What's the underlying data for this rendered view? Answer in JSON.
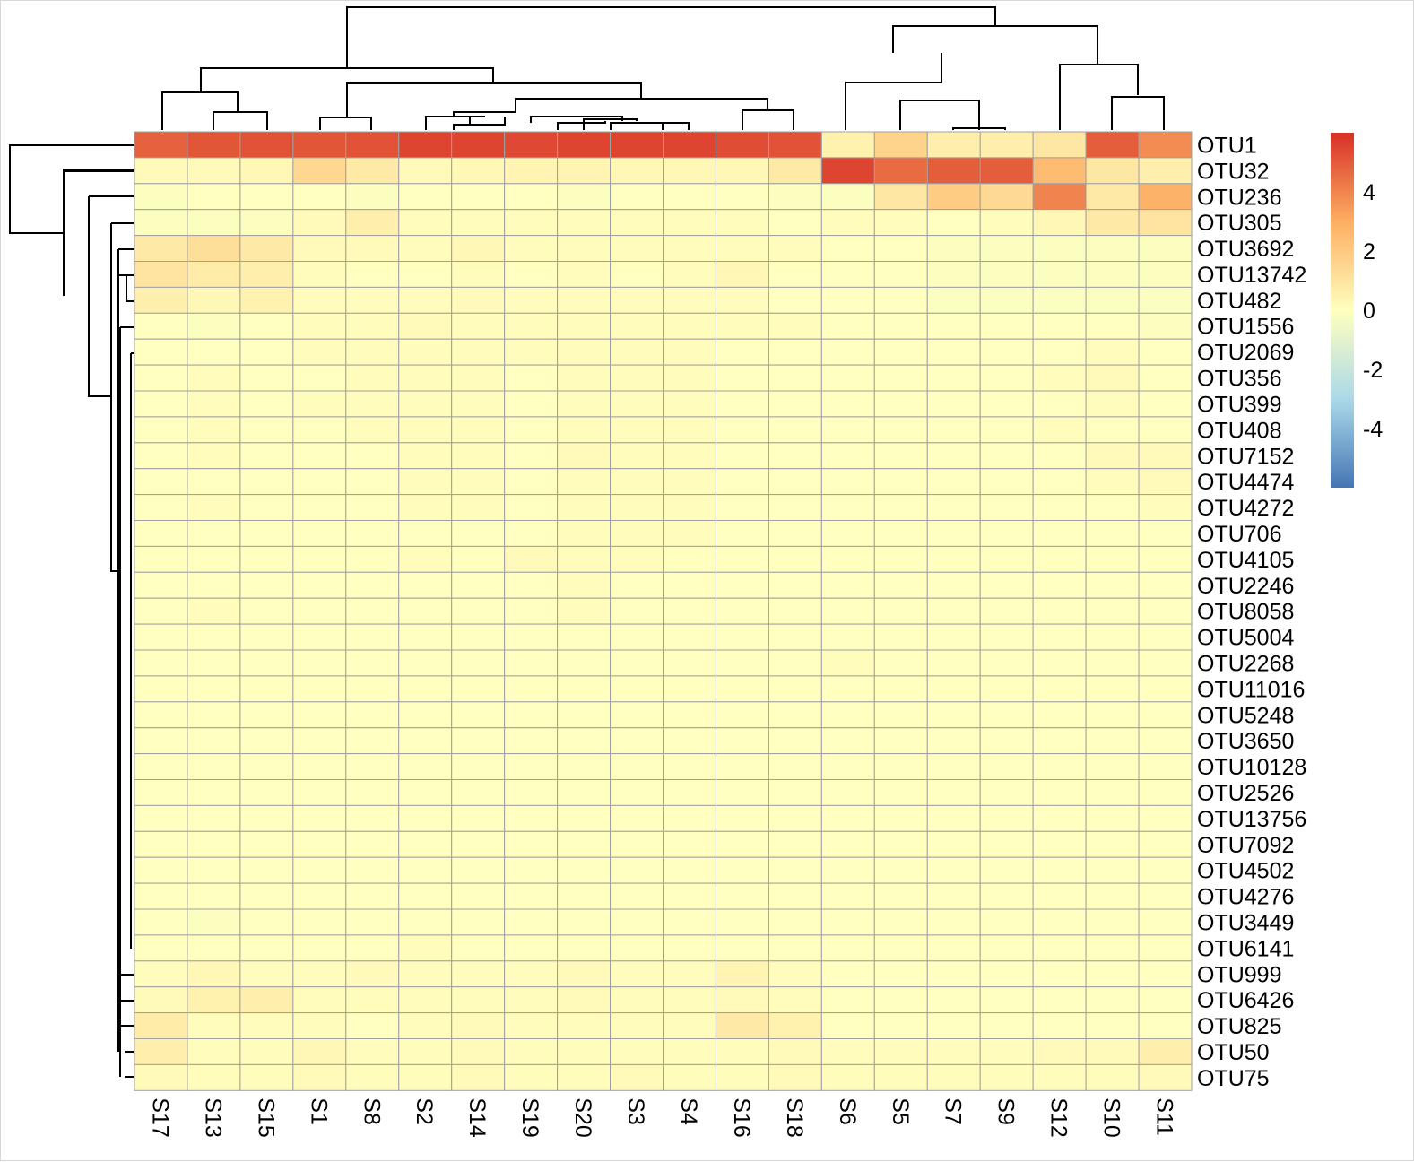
{
  "chart_data": {
    "type": "heatmap",
    "title": "",
    "colors": {
      "low": "#4575b4",
      "mid": "#ffffbf",
      "high": "#d73027",
      "cell_border": "#a0a0a0"
    },
    "columns": [
      "S17",
      "S13",
      "S15",
      "S1",
      "S8",
      "S2",
      "S14",
      "S19",
      "S20",
      "S3",
      "S4",
      "S16",
      "S18",
      "S6",
      "S5",
      "S7",
      "S9",
      "S12",
      "S10",
      "S11"
    ],
    "rows": [
      "OTU1",
      "OTU32",
      "OTU236",
      "OTU305",
      "OTU3692",
      "OTU13742",
      "OTU482",
      "OTU1556",
      "OTU2069",
      "OTU356",
      "OTU399",
      "OTU408",
      "OTU7152",
      "OTU4474",
      "OTU4272",
      "OTU706",
      "OTU4105",
      "OTU2246",
      "OTU8058",
      "OTU5004",
      "OTU2268",
      "OTU11016",
      "OTU5248",
      "OTU3650",
      "OTU10128",
      "OTU2526",
      "OTU13756",
      "OTU7092",
      "OTU4502",
      "OTU4276",
      "OTU3449",
      "OTU6141",
      "OTU999",
      "OTU6426",
      "OTU825",
      "OTU50",
      "OTU75"
    ],
    "values": [
      [
        4.8,
        5.1,
        5.2,
        5.1,
        5.2,
        5.5,
        5.5,
        5.4,
        5.5,
        5.5,
        5.5,
        5.3,
        5.2,
        0.5,
        1.6,
        0.6,
        0.6,
        0.9,
        4.9,
        3.8
      ],
      [
        0.2,
        0.2,
        0.3,
        1.5,
        0.8,
        0.2,
        0.3,
        0.4,
        0.4,
        0.3,
        0.3,
        0.3,
        0.8,
        5.5,
        4.6,
        4.9,
        4.9,
        2.5,
        0.9,
        0.6
      ],
      [
        -0.1,
        0.0,
        0.0,
        0.0,
        -0.1,
        0.0,
        0.0,
        0.0,
        -0.1,
        0.0,
        0.0,
        0.0,
        -0.1,
        -0.1,
        0.9,
        1.9,
        1.4,
        4.0,
        0.8,
        2.8
      ],
      [
        -0.1,
        -0.1,
        -0.1,
        0.2,
        0.6,
        0.1,
        0.1,
        0.1,
        0.1,
        0.1,
        0.1,
        0.1,
        0.0,
        0.1,
        0.1,
        0.0,
        0.1,
        0.3,
        0.8,
        1.0
      ],
      [
        0.8,
        1.2,
        0.8,
        0.2,
        0.2,
        0.1,
        0.3,
        0.1,
        0.1,
        0.1,
        0.1,
        0.1,
        0.1,
        0.0,
        0.0,
        -0.1,
        -0.1,
        -0.1,
        -0.1,
        -0.1
      ],
      [
        1.0,
        0.7,
        0.6,
        0.1,
        0.0,
        0.0,
        0.1,
        0.0,
        0.1,
        0.0,
        0.1,
        0.3,
        0.0,
        0.0,
        0.0,
        -0.1,
        -0.1,
        -0.1,
        -0.1,
        -0.1
      ],
      [
        0.6,
        0.3,
        0.5,
        0.1,
        0.1,
        0.1,
        0.2,
        0.1,
        0.1,
        0.1,
        0.1,
        0.1,
        0.0,
        0.0,
        0.0,
        -0.1,
        -0.1,
        -0.1,
        -0.1,
        -0.1
      ],
      [
        0.0,
        -0.1,
        0.0,
        0.1,
        0.1,
        0.2,
        0.1,
        0.1,
        0.1,
        0.1,
        0.1,
        0.1,
        0.1,
        0.0,
        0.0,
        0.0,
        0.0,
        0.0,
        0.0,
        -0.1
      ],
      [
        0.0,
        0.0,
        0.0,
        0.1,
        0.1,
        0.1,
        0.1,
        0.1,
        0.1,
        0.1,
        0.1,
        0.0,
        0.0,
        0.0,
        0.0,
        0.0,
        0.0,
        0.0,
        0.1,
        0.0
      ],
      [
        0.0,
        0.1,
        0.0,
        0.0,
        0.1,
        0.1,
        0.1,
        0.0,
        0.1,
        0.1,
        0.1,
        0.0,
        0.0,
        0.0,
        0.0,
        0.0,
        0.0,
        0.1,
        0.2,
        0.0
      ],
      [
        0.0,
        0.1,
        0.0,
        0.1,
        0.1,
        0.1,
        0.1,
        0.0,
        0.1,
        0.1,
        0.1,
        0.0,
        0.0,
        0.0,
        0.0,
        0.0,
        0.0,
        0.0,
        0.1,
        0.0
      ],
      [
        0.0,
        0.1,
        0.0,
        0.0,
        0.1,
        0.1,
        0.1,
        0.0,
        0.1,
        0.1,
        0.1,
        0.0,
        0.0,
        0.0,
        0.0,
        0.0,
        0.0,
        0.1,
        0.0,
        0.0
      ],
      [
        0.0,
        0.1,
        0.0,
        0.0,
        0.0,
        0.1,
        0.1,
        0.0,
        0.2,
        0.1,
        0.1,
        0.0,
        0.0,
        0.0,
        0.0,
        0.0,
        0.0,
        0.0,
        0.2,
        0.2
      ],
      [
        0.0,
        0.0,
        0.0,
        0.0,
        0.0,
        0.1,
        0.1,
        0.0,
        0.1,
        0.1,
        0.1,
        0.0,
        0.0,
        0.0,
        0.0,
        0.0,
        0.0,
        0.0,
        0.1,
        0.2
      ],
      [
        0.0,
        0.1,
        0.0,
        0.0,
        0.0,
        0.1,
        0.1,
        0.0,
        0.1,
        0.1,
        0.1,
        0.0,
        0.0,
        0.0,
        0.0,
        0.0,
        0.0,
        0.0,
        0.0,
        0.1
      ],
      [
        0.0,
        0.0,
        0.0,
        0.0,
        0.0,
        0.0,
        0.0,
        0.0,
        0.1,
        0.1,
        0.1,
        0.0,
        0.0,
        0.0,
        0.0,
        0.0,
        0.0,
        0.0,
        0.0,
        0.0
      ],
      [
        0.0,
        0.0,
        0.0,
        0.0,
        0.0,
        0.1,
        0.0,
        0.2,
        0.1,
        0.1,
        0.0,
        0.0,
        0.0,
        0.0,
        0.0,
        0.0,
        0.0,
        0.0,
        0.0,
        0.0
      ],
      [
        0.0,
        0.0,
        0.0,
        0.0,
        0.0,
        0.0,
        0.0,
        0.0,
        0.1,
        0.0,
        0.0,
        0.0,
        0.0,
        0.0,
        0.0,
        0.0,
        0.0,
        0.0,
        0.0,
        0.0
      ],
      [
        0.0,
        0.1,
        0.0,
        0.0,
        0.0,
        0.0,
        0.0,
        0.0,
        0.1,
        0.0,
        0.0,
        0.0,
        0.0,
        0.0,
        0.0,
        0.0,
        0.0,
        0.0,
        0.0,
        0.0
      ],
      [
        0.0,
        0.0,
        0.0,
        0.0,
        0.0,
        0.0,
        0.0,
        0.0,
        0.0,
        0.0,
        0.0,
        0.0,
        0.0,
        0.0,
        0.0,
        0.0,
        0.0,
        0.0,
        0.0,
        0.0
      ],
      [
        0.0,
        0.0,
        0.0,
        0.0,
        0.0,
        0.0,
        0.0,
        0.0,
        0.0,
        0.0,
        0.0,
        0.0,
        0.0,
        0.1,
        0.0,
        0.0,
        0.0,
        0.0,
        0.0,
        0.0
      ],
      [
        0.0,
        0.0,
        0.0,
        0.0,
        0.0,
        0.0,
        0.0,
        0.0,
        0.0,
        0.0,
        0.0,
        0.0,
        0.0,
        0.0,
        0.0,
        0.0,
        0.0,
        0.0,
        0.0,
        0.0
      ],
      [
        0.0,
        0.0,
        0.0,
        0.0,
        0.0,
        0.0,
        0.0,
        0.0,
        0.0,
        0.0,
        0.0,
        0.0,
        0.0,
        0.0,
        0.0,
        0.0,
        0.0,
        0.0,
        0.0,
        0.0
      ],
      [
        0.0,
        0.0,
        0.0,
        0.0,
        0.0,
        0.0,
        0.0,
        0.0,
        0.0,
        0.0,
        0.0,
        0.0,
        0.0,
        0.0,
        0.0,
        0.0,
        0.0,
        0.0,
        0.0,
        0.0
      ],
      [
        0.0,
        0.0,
        0.0,
        0.0,
        0.0,
        0.0,
        0.0,
        0.0,
        0.0,
        0.0,
        0.0,
        0.0,
        0.0,
        0.0,
        0.0,
        0.0,
        0.0,
        0.0,
        0.0,
        0.0
      ],
      [
        0.0,
        0.0,
        0.0,
        0.0,
        0.0,
        0.0,
        0.0,
        0.0,
        0.0,
        0.0,
        0.0,
        0.0,
        0.0,
        0.0,
        0.0,
        0.0,
        0.0,
        0.0,
        0.0,
        0.0
      ],
      [
        0.0,
        0.0,
        0.0,
        0.0,
        0.0,
        0.0,
        0.0,
        0.0,
        0.0,
        0.0,
        0.0,
        0.0,
        0.0,
        0.0,
        0.0,
        0.0,
        0.0,
        0.0,
        0.0,
        0.0
      ],
      [
        0.0,
        0.0,
        0.0,
        0.0,
        0.0,
        0.0,
        0.0,
        0.0,
        0.0,
        0.0,
        0.0,
        0.0,
        0.0,
        0.0,
        0.0,
        0.0,
        0.0,
        0.0,
        0.0,
        0.0
      ],
      [
        0.0,
        0.0,
        0.0,
        0.0,
        0.0,
        0.0,
        0.0,
        0.0,
        0.0,
        0.0,
        0.0,
        0.0,
        0.0,
        0.0,
        0.0,
        0.0,
        0.0,
        0.0,
        0.0,
        0.0
      ],
      [
        0.0,
        0.0,
        0.0,
        0.0,
        0.0,
        0.0,
        0.0,
        0.0,
        0.0,
        0.0,
        0.0,
        0.0,
        0.0,
        0.0,
        0.0,
        0.0,
        0.0,
        0.0,
        0.0,
        0.0
      ],
      [
        0.0,
        -0.1,
        0.0,
        0.0,
        0.0,
        0.0,
        0.0,
        0.0,
        0.0,
        0.0,
        0.0,
        0.0,
        0.0,
        0.0,
        0.0,
        0.0,
        0.0,
        0.0,
        0.0,
        0.0
      ],
      [
        0.0,
        0.0,
        0.0,
        0.0,
        0.0,
        0.1,
        0.0,
        0.0,
        0.0,
        0.0,
        0.0,
        0.0,
        0.0,
        0.0,
        0.0,
        0.0,
        0.0,
        0.0,
        0.0,
        0.0
      ],
      [
        0.1,
        0.3,
        0.1,
        0.1,
        0.2,
        0.1,
        0.1,
        0.1,
        0.2,
        0.1,
        0.1,
        0.4,
        0.1,
        0.0,
        0.0,
        0.0,
        0.0,
        0.0,
        0.0,
        0.0
      ],
      [
        0.2,
        0.5,
        0.6,
        0.1,
        0.1,
        0.1,
        0.1,
        0.1,
        0.2,
        0.1,
        0.1,
        0.2,
        0.1,
        0.0,
        0.0,
        0.0,
        0.0,
        0.0,
        0.0,
        0.0
      ],
      [
        0.7,
        0.1,
        0.1,
        0.1,
        0.0,
        0.1,
        0.2,
        0.1,
        0.1,
        0.1,
        0.1,
        0.8,
        0.5,
        0.0,
        0.0,
        0.0,
        0.0,
        0.0,
        0.0,
        0.0
      ],
      [
        0.6,
        0.1,
        0.1,
        0.3,
        0.1,
        0.1,
        0.2,
        0.1,
        0.1,
        0.1,
        0.1,
        0.1,
        0.2,
        0.1,
        0.1,
        0.1,
        0.1,
        0.2,
        0.2,
        0.6
      ],
      [
        0.2,
        0.1,
        0.1,
        0.2,
        0.1,
        0.1,
        0.2,
        0.1,
        0.1,
        0.2,
        0.1,
        0.1,
        0.2,
        0.1,
        0.1,
        0.1,
        0.1,
        0.1,
        0.1,
        0.2
      ]
    ],
    "colorbar": {
      "range": [
        -6,
        6
      ],
      "ticks": [
        "4",
        "2",
        "0",
        "-2",
        "-4"
      ],
      "tick_values": [
        4,
        2,
        0,
        -2,
        -4
      ]
    },
    "column_dendrogram": [
      [
        "S17",
        "S13",
        "S15",
        "S1",
        "S8",
        "S2",
        "S14",
        "S19",
        "S20",
        "S3",
        "S4",
        "S16",
        "S18"
      ],
      [
        "S6",
        "S5",
        "S7",
        "S9",
        "S12",
        "S10",
        "S11"
      ]
    ],
    "row_dendrogram": [
      [
        "OTU1"
      ],
      [
        "OTU32"
      ],
      [
        "OTU236"
      ],
      [
        "OTU305",
        "OTU3692",
        "OTU13742",
        "OTU482",
        "OTU1556",
        "OTU2069",
        "OTU356",
        "OTU399",
        "OTU408",
        "OTU7152",
        "OTU4474",
        "OTU4272",
        "OTU706",
        "OTU4105",
        "OTU2246",
        "OTU8058",
        "OTU5004",
        "OTU2268",
        "OTU11016",
        "OTU5248",
        "OTU3650",
        "OTU10128",
        "OTU2526",
        "OTU13756",
        "OTU7092",
        "OTU4502",
        "OTU4276",
        "OTU3449",
        "OTU6141",
        "OTU999",
        "OTU6426",
        "OTU825",
        "OTU50",
        "OTU75"
      ]
    ]
  }
}
